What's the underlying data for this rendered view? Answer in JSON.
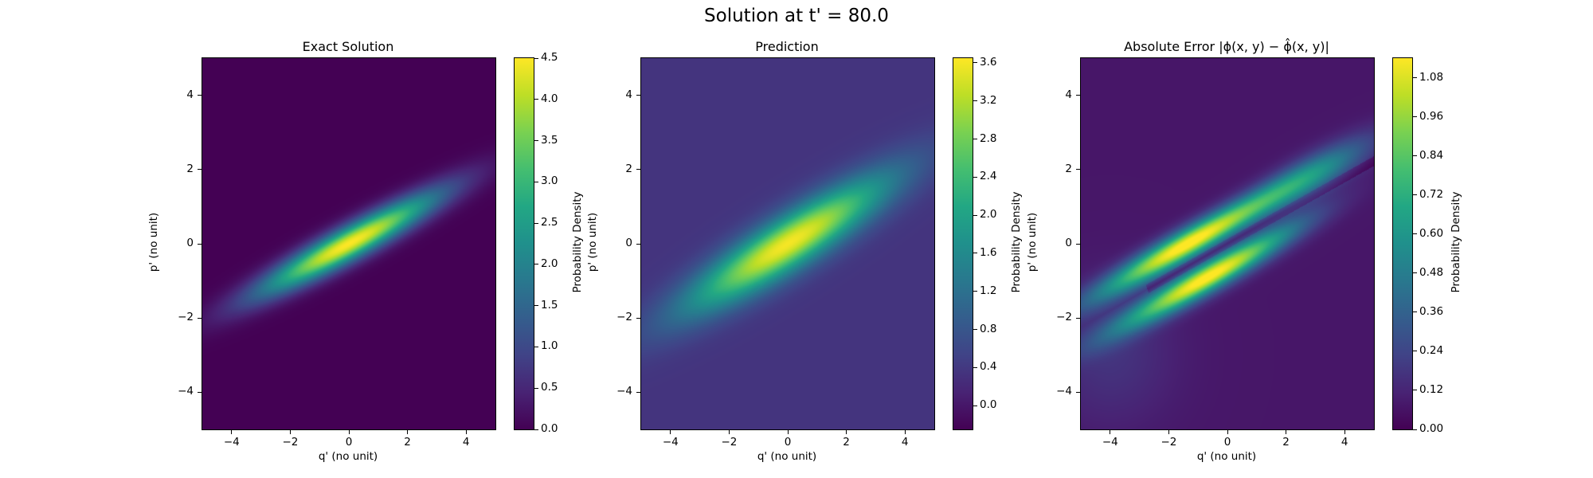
{
  "figure_title": "Solution at t' = 80.0",
  "chart_data": [
    {
      "type": "heatmap",
      "title": "Exact Solution",
      "xlabel": "q' (no unit)",
      "ylabel": "p' (no unit)",
      "xlim": [
        -5,
        5
      ],
      "ylim": [
        -5,
        5
      ],
      "xticks": [
        -4,
        -2,
        0,
        2,
        4
      ],
      "yticks": [
        -4,
        -2,
        0,
        2,
        4
      ],
      "xtick_labels": [
        "−4",
        "−2",
        "0",
        "2",
        "4"
      ],
      "ytick_labels": [
        "−4",
        "−2",
        "0",
        "2",
        "4"
      ],
      "colormap": "viridis",
      "colorbar": {
        "label": "Probability Density",
        "range": [
          0.0,
          4.5
        ],
        "ticks": [
          0.0,
          0.5,
          1.0,
          1.5,
          2.0,
          2.5,
          3.0,
          3.5,
          4.0,
          4.5
        ],
        "tick_labels": [
          "0.0",
          "0.5",
          "1.0",
          "1.5",
          "2.0",
          "2.5",
          "3.0",
          "3.5",
          "4.0",
          "4.5"
        ]
      },
      "field": {
        "kind": "gaussian_ellipse",
        "center": [
          0,
          0
        ],
        "angle_deg": 23,
        "sigma_major": 2.3,
        "sigma_minor": 0.32,
        "peak": 4.5,
        "baseline": 0.0
      }
    },
    {
      "type": "heatmap",
      "title": "Prediction",
      "xlabel": "q' (no unit)",
      "ylabel": "p' (no unit)",
      "xlim": [
        -5,
        5
      ],
      "ylim": [
        -5,
        5
      ],
      "xticks": [
        -4,
        -2,
        0,
        2,
        4
      ],
      "yticks": [
        -4,
        -2,
        0,
        2,
        4
      ],
      "xtick_labels": [
        "−4",
        "−2",
        "0",
        "2",
        "4"
      ],
      "ytick_labels": [
        "−4",
        "−2",
        "0",
        "2",
        "4"
      ],
      "colormap": "viridis",
      "colorbar": {
        "label": "Probability Density",
        "range": [
          -0.25,
          3.65
        ],
        "ticks": [
          0.0,
          0.4,
          0.8,
          1.2,
          1.6,
          2.0,
          2.4,
          2.8,
          3.2,
          3.6
        ],
        "tick_labels": [
          "0.0",
          "0.4",
          "0.8",
          "1.2",
          "1.6",
          "2.0",
          "2.4",
          "2.8",
          "3.2",
          "3.6"
        ]
      },
      "field": {
        "kind": "gaussian_ellipse",
        "center": [
          0,
          0
        ],
        "angle_deg": 26,
        "sigma_major": 2.6,
        "sigma_minor": 0.5,
        "peak": 3.6,
        "baseline": 0.35
      }
    },
    {
      "type": "heatmap",
      "title": "Absolute Error |ϕ(x, y) − ϕ̂(x, y)|",
      "xlabel": "q' (no unit)",
      "ylabel": "p' (no unit)",
      "xlim": [
        -5,
        5
      ],
      "ylim": [
        -5,
        5
      ],
      "xticks": [
        -4,
        -2,
        0,
        2,
        4
      ],
      "yticks": [
        -4,
        -2,
        0,
        2,
        4
      ],
      "xtick_labels": [
        "−4",
        "−2",
        "0",
        "2",
        "4"
      ],
      "ytick_labels": [
        "−4",
        "−2",
        "0",
        "2",
        "4"
      ],
      "colormap": "viridis",
      "colorbar": {
        "label": "Probability Density",
        "range": [
          0.0,
          1.14
        ],
        "ticks": [
          0.0,
          0.12,
          0.24,
          0.36,
          0.48,
          0.6,
          0.72,
          0.84,
          0.96,
          1.08
        ],
        "tick_labels": [
          "0.00",
          "0.12",
          "0.24",
          "0.36",
          "0.48",
          "0.60",
          "0.72",
          "0.84",
          "0.96",
          "1.08"
        ]
      },
      "field": {
        "kind": "double_band",
        "angle_deg": 24,
        "band_offset": 0.55,
        "sigma_major": 2.2,
        "sigma_minor": 0.28,
        "peak": 1.1,
        "baseline": 0.12
      }
    }
  ]
}
